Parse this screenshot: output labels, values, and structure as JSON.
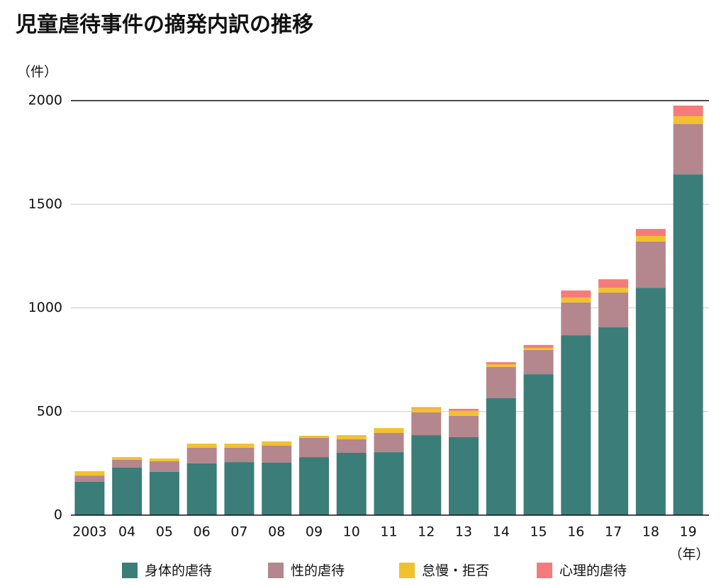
{
  "chart_data": {
    "type": "bar",
    "stacked": true,
    "title": "児童虐待事件の摘発内訳の推移",
    "y_label": "（件）",
    "x_label": "（年）",
    "categories": [
      "2003",
      "04",
      "05",
      "06",
      "07",
      "08",
      "09",
      "10",
      "11",
      "12",
      "13",
      "14",
      "15",
      "16",
      "17",
      "18",
      "19"
    ],
    "series": [
      {
        "name": "身体的虐待",
        "color": "#3b7d78",
        "values": [
          161,
          229,
          209,
          250,
          256,
          253,
          280,
          301,
          304,
          386,
          376,
          564,
          680,
          868,
          906,
          1097,
          1644
        ]
      },
      {
        "name": "性的虐待",
        "color": "#b4868e",
        "values": [
          30,
          38,
          51,
          75,
          69,
          82,
          93,
          65,
          93,
          110,
          103,
          151,
          117,
          158,
          168,
          223,
          243
        ]
      },
      {
        "name": "怠慢・拒否",
        "color": "#f2c12e",
        "values": [
          21,
          13,
          13,
          20,
          20,
          21,
          10,
          20,
          23,
          20,
          24,
          13,
          10,
          24,
          23,
          27,
          38
        ]
      },
      {
        "name": "心理的虐待",
        "color": "#f47b7b",
        "values": [
          0,
          0,
          0,
          0,
          0,
          0,
          0,
          0,
          0,
          4,
          10,
          10,
          14,
          34,
          41,
          34,
          51
        ]
      }
    ],
    "ylim": [
      0,
      2000
    ],
    "yticks": [
      0,
      500,
      1000,
      1500,
      2000
    ],
    "grid": true,
    "legend": "bottom"
  }
}
